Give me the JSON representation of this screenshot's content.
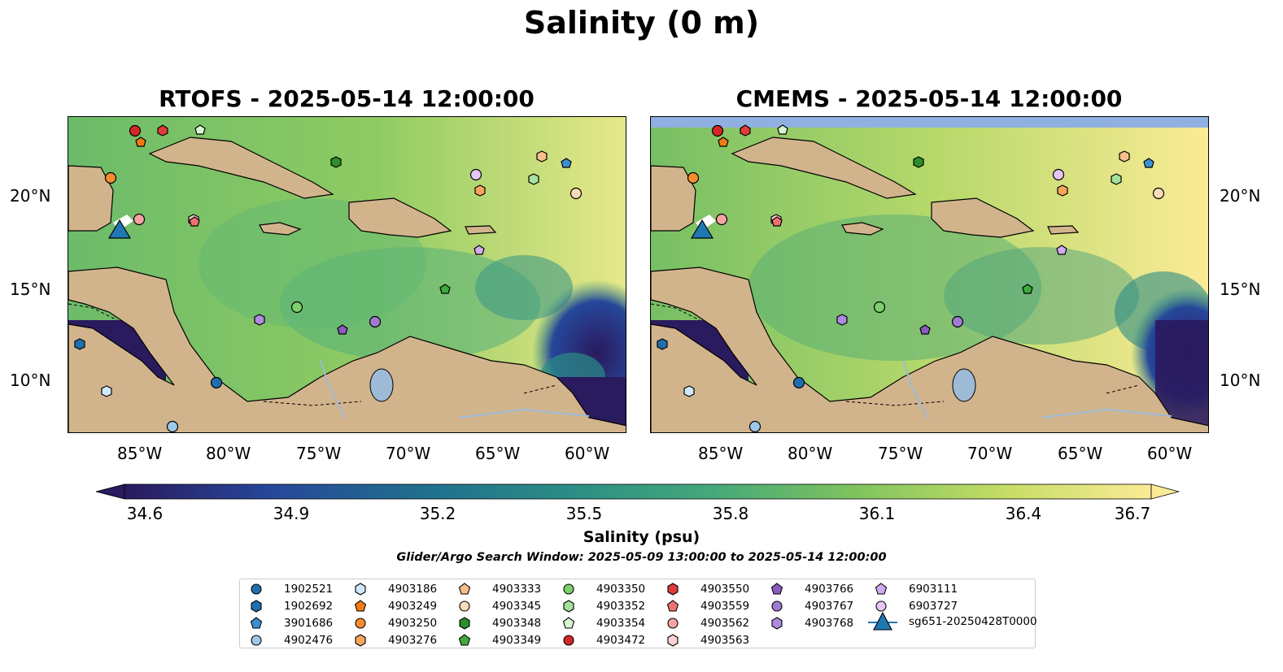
{
  "title": "Salinity (0 m)",
  "panels": [
    {
      "id": "rtofs",
      "title": "RTOFS - 2025-05-14 12:00:00"
    },
    {
      "id": "cmems",
      "title": "CMEMS - 2025-05-14 12:00:00"
    }
  ],
  "axes": {
    "lat_ticks": [
      "20°N",
      "15°N",
      "10°N"
    ],
    "lon_ticks": [
      "85°W",
      "80°W",
      "75°W",
      "70°W",
      "65°W",
      "60°W"
    ]
  },
  "colorbar": {
    "label": "Salinity (psu)",
    "min": 34.6,
    "max": 36.7,
    "ticks": [
      "34.6",
      "34.9",
      "35.2",
      "35.5",
      "35.8",
      "36.1",
      "36.4",
      "36.7"
    ],
    "colormap": [
      "#2a1a5e",
      "#26479a",
      "#1f6f8e",
      "#2b8c86",
      "#44a87a",
      "#7ec35e",
      "#c6dd66",
      "#fbeb96"
    ]
  },
  "search_window": "Glider/Argo Search Window: 2025-05-09 13:00:00 to 2025-05-14 12:00:00",
  "legend": [
    {
      "id": "1902521",
      "marker": "circle",
      "color": "#1f6fae"
    },
    {
      "id": "1902692",
      "marker": "hexagon",
      "color": "#1f6fae"
    },
    {
      "id": "3901686",
      "marker": "pentagon",
      "color": "#3d8fd1"
    },
    {
      "id": "4902476",
      "marker": "circle",
      "color": "#9ec8ea"
    },
    {
      "id": "4903186",
      "marker": "hexagon",
      "color": "#cfe9fb"
    },
    {
      "id": "4903249",
      "marker": "pentagon",
      "color": "#f07d12"
    },
    {
      "id": "4903250",
      "marker": "circle",
      "color": "#f58d2d"
    },
    {
      "id": "4903276",
      "marker": "hexagon",
      "color": "#f9a55a"
    },
    {
      "id": "4903333",
      "marker": "pentagon",
      "color": "#f7c08a"
    },
    {
      "id": "4903345",
      "marker": "circle",
      "color": "#fbdcb8"
    },
    {
      "id": "4903348",
      "marker": "hexagon",
      "color": "#2a8f2a"
    },
    {
      "id": "4903349",
      "marker": "pentagon",
      "color": "#3fa83f"
    },
    {
      "id": "4903350",
      "marker": "circle",
      "color": "#7bd06b"
    },
    {
      "id": "4903352",
      "marker": "hexagon",
      "color": "#a6e09a"
    },
    {
      "id": "4903354",
      "marker": "pentagon",
      "color": "#d8f5cf"
    },
    {
      "id": "4903472",
      "marker": "circle",
      "color": "#d62728"
    },
    {
      "id": "4903550",
      "marker": "hexagon",
      "color": "#df3b3b"
    },
    {
      "id": "4903559",
      "marker": "pentagon",
      "color": "#f07070"
    },
    {
      "id": "4903562",
      "marker": "circle",
      "color": "#f7a3a3"
    },
    {
      "id": "4903563",
      "marker": "hexagon",
      "color": "#fbd0d0"
    },
    {
      "id": "4903766",
      "marker": "pentagon",
      "color": "#8b5bbf"
    },
    {
      "id": "4903767",
      "marker": "circle",
      "color": "#a07ad0"
    },
    {
      "id": "4903768",
      "marker": "hexagon",
      "color": "#b08ae0"
    },
    {
      "id": "6903111",
      "marker": "pentagon",
      "color": "#d3aaf0"
    },
    {
      "id": "6903727",
      "marker": "circle",
      "color": "#e6c6f7"
    },
    {
      "id": "sg651-20250428T0000",
      "marker": "triangle",
      "color": "#1f77b4"
    }
  ],
  "colors": {
    "land": "#d2b48c",
    "river": "#9dbad6",
    "nodata": "#8fb0e0"
  }
}
